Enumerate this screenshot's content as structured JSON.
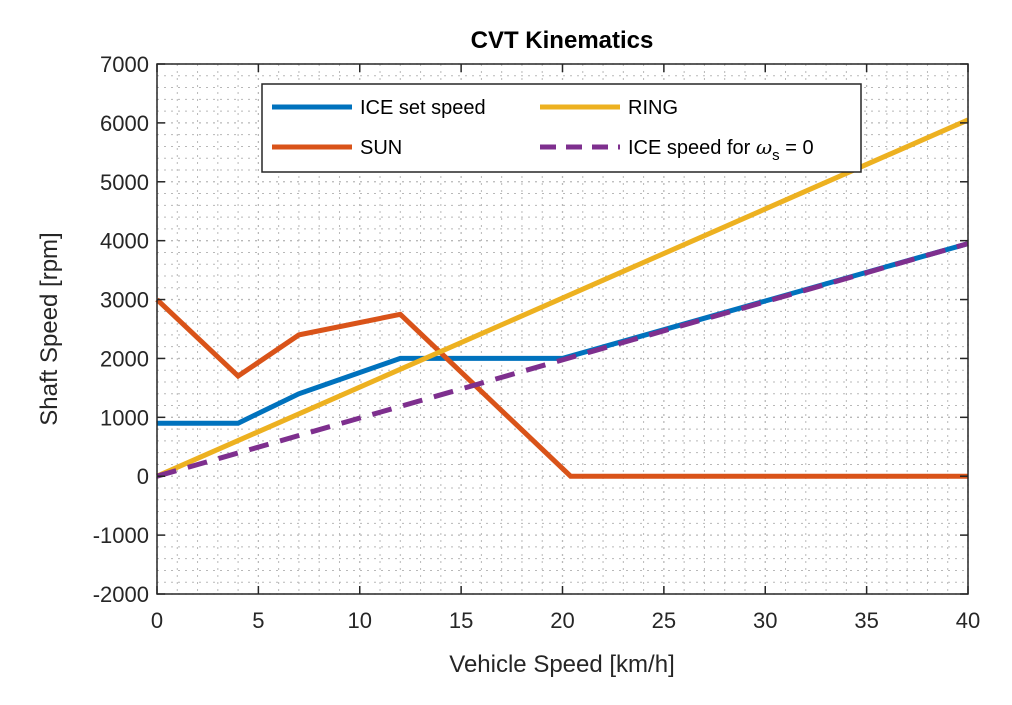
{
  "chart_data": {
    "type": "line",
    "title": "CVT Kinematics",
    "xlabel": "Vehicle Speed [km/h]",
    "ylabel": "Shaft Speed [rpm]",
    "xlim": [
      0,
      40
    ],
    "ylim": [
      -2000,
      7000
    ],
    "xticks": [
      0,
      5,
      10,
      15,
      20,
      25,
      30,
      35,
      40
    ],
    "yticks": [
      -2000,
      -1000,
      0,
      1000,
      2000,
      3000,
      4000,
      5000,
      6000,
      7000
    ],
    "grid": "dotted",
    "legend_position": "top",
    "series": [
      {
        "name": "ICE set speed",
        "color": "#0072BD",
        "style": "solid",
        "points": [
          [
            0,
            900
          ],
          [
            4,
            900
          ],
          [
            7,
            1400
          ],
          [
            12,
            2000
          ],
          [
            20,
            2000
          ],
          [
            40,
            3950
          ]
        ]
      },
      {
        "name": "SUN",
        "color": "#D95319",
        "style": "solid",
        "points": [
          [
            0,
            3000
          ],
          [
            4,
            1700
          ],
          [
            7,
            2400
          ],
          [
            12,
            2750
          ],
          [
            20.4,
            0
          ],
          [
            40,
            0
          ]
        ]
      },
      {
        "name": "RING",
        "color": "#EDB120",
        "style": "solid",
        "points": [
          [
            0,
            0
          ],
          [
            40,
            6050
          ]
        ]
      },
      {
        "name": "ICE speed for ωs = 0",
        "color": "#7E2F8E",
        "style": "dashed",
        "points": [
          [
            0,
            0
          ],
          [
            40,
            3950
          ]
        ]
      }
    ]
  },
  "legend": {
    "ice_set_speed": "ICE set speed",
    "sun": "SUN",
    "ring": "RING",
    "ice_speed_prefix": "ICE speed for ",
    "omega": "ω",
    "subscript": "s",
    "suffix": " = 0"
  }
}
